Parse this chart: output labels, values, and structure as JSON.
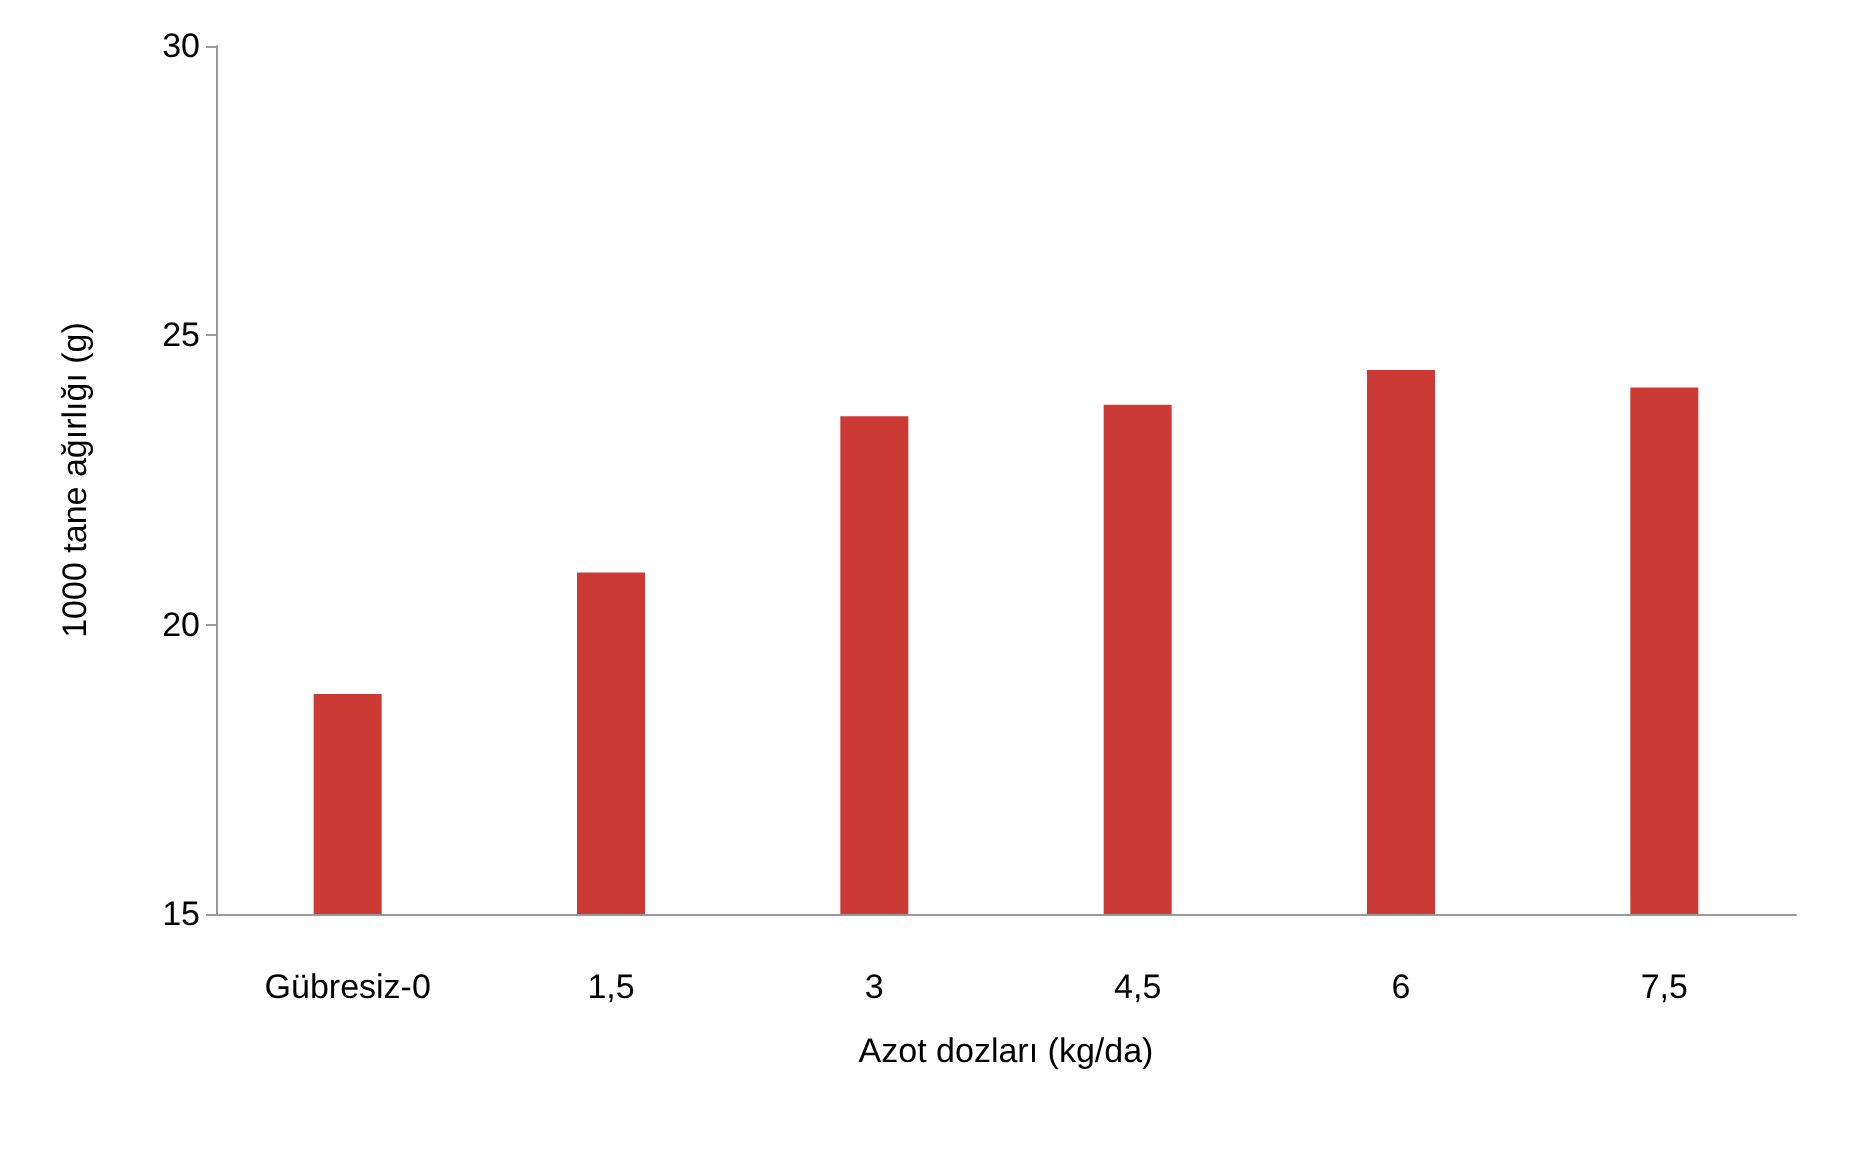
{
  "chart_data": {
    "type": "bar",
    "xlabel": "Azot dozları (kg/da)",
    "ylabel": "1000 tane ağırlığı (g)",
    "categories": [
      "Gübresiz-0",
      "1,5",
      "3",
      "4,5",
      "6",
      "7,5"
    ],
    "values": [
      18.8,
      20.9,
      23.6,
      23.8,
      24.4,
      24.1
    ],
    "color": "#cc3a36",
    "ylim": [
      15,
      30
    ],
    "yticks": [
      15,
      20,
      25,
      30
    ],
    "grid": false
  }
}
